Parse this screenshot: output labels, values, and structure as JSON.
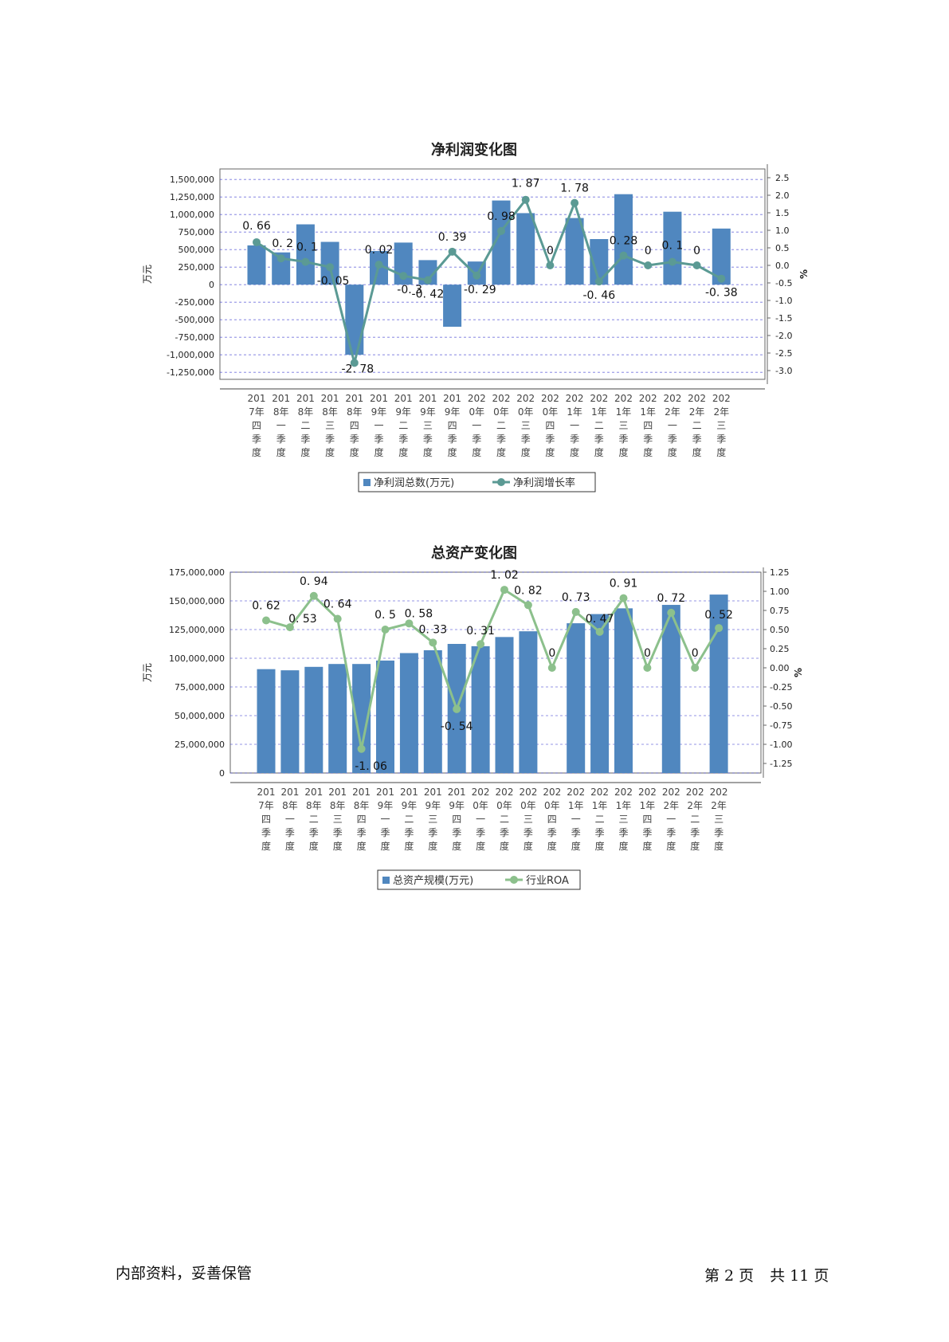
{
  "footer": {
    "confidential": "内部资料，妥善保管",
    "page_prefix": "第",
    "page_no": "2",
    "page_unit": "页",
    "total_prefix": "共",
    "total_pages": "11",
    "total_unit": "页"
  },
  "colors": {
    "bar": "#5087bf",
    "line1": "#5b9a94",
    "line2": "#8cc08c",
    "grid": "#3a3ad0"
  },
  "chart_data": [
    {
      "type": "bar+line",
      "title": "净利润变化图",
      "ylabel_left": "万元",
      "ylabel_right": "%",
      "left_ticks": [
        "1,500,000",
        "1,250,000",
        "1,000,000",
        "750,000",
        "500,000",
        "250,000",
        "0",
        "-250,000",
        "-500,000",
        "-750,000",
        "-1,000,000",
        "-1,250,000"
      ],
      "right_ticks": [
        "2.5",
        "2.0",
        "1.5",
        "1.0",
        "0.5",
        "0.0",
        "-0.5",
        "-1.0",
        "-1.5",
        "-2.0",
        "-2.5",
        "-3.0"
      ],
      "ylim_left": [
        -1350000,
        1650000
      ],
      "ylim_right": [
        -3.25,
        2.75
      ],
      "grid": true,
      "legend_position": "bottom-center",
      "categories": [
        [
          "201",
          "7年",
          "四",
          "季",
          "度"
        ],
        [
          "201",
          "8年",
          "一",
          "季",
          "度"
        ],
        [
          "201",
          "8年",
          "二",
          "季",
          "度"
        ],
        [
          "201",
          "8年",
          "三",
          "季",
          "度"
        ],
        [
          "201",
          "8年",
          "四",
          "季",
          "度"
        ],
        [
          "201",
          "9年",
          "一",
          "季",
          "度"
        ],
        [
          "201",
          "9年",
          "二",
          "季",
          "度"
        ],
        [
          "201",
          "9年",
          "三",
          "季",
          "度"
        ],
        [
          "201",
          "9年",
          "四",
          "季",
          "度"
        ],
        [
          "202",
          "0年",
          "一",
          "季",
          "度"
        ],
        [
          "202",
          "0年",
          "二",
          "季",
          "度"
        ],
        [
          "202",
          "0年",
          "三",
          "季",
          "度"
        ],
        [
          "202",
          "0年",
          "四",
          "季",
          "度"
        ],
        [
          "202",
          "1年",
          "一",
          "季",
          "度"
        ],
        [
          "202",
          "1年",
          "二",
          "季",
          "度"
        ],
        [
          "202",
          "1年",
          "三",
          "季",
          "度"
        ],
        [
          "202",
          "1年",
          "四",
          "季",
          "度"
        ],
        [
          "202",
          "2年",
          "一",
          "季",
          "度"
        ],
        [
          "202",
          "2年",
          "二",
          "季",
          "度"
        ],
        [
          "202",
          "2年",
          "三",
          "季",
          "度"
        ]
      ],
      "series": [
        {
          "name": "净利润总数(万元)",
          "kind": "bar",
          "values": [
            560000,
            460000,
            860000,
            610000,
            -1000000,
            480000,
            600000,
            350000,
            -600000,
            330000,
            1200000,
            1020000,
            null,
            950000,
            650000,
            1290000,
            null,
            1040000,
            null,
            800000
          ]
        },
        {
          "name": "净利润增长率",
          "kind": "line",
          "values": [
            0.66,
            0.2,
            0.1,
            -0.05,
            -2.78,
            0.02,
            -0.3,
            -0.42,
            0.39,
            -0.29,
            0.98,
            1.87,
            0,
            1.78,
            -0.46,
            0.28,
            0,
            0.1,
            0,
            -0.38
          ],
          "labels": [
            "0. 66",
            "0. 2",
            "0. 1",
            "-0. 05",
            "-2. 78",
            "0. 02",
            "-0. 3",
            "-0. 42",
            "0. 39",
            "-0. 29",
            "0. 98",
            "1. 87",
            "0",
            "1. 78",
            "-0. 46",
            "0. 28",
            "0",
            "0. 1",
            "0",
            "-0. 38"
          ]
        }
      ]
    },
    {
      "type": "bar+line",
      "title": "总资产变化图",
      "ylabel_left": "万元",
      "ylabel_right": "%",
      "left_ticks": [
        "175,000,000",
        "150,000,000",
        "125,000,000",
        "100,000,000",
        "75,000,000",
        "50,000,000",
        "25,000,000",
        "0"
      ],
      "right_ticks": [
        "1.25",
        "1.00",
        "0.75",
        "0.50",
        "0.25",
        "0.00",
        "-0.25",
        "-0.50",
        "-0.75",
        "-1.00",
        "-1.25"
      ],
      "ylim_left": [
        0,
        175000000
      ],
      "ylim_right": [
        -1.375,
        1.25
      ],
      "grid": true,
      "legend_position": "bottom-center",
      "categories": [
        [
          "201",
          "7年",
          "四",
          "季",
          "度"
        ],
        [
          "201",
          "8年",
          "一",
          "季",
          "度"
        ],
        [
          "201",
          "8年",
          "二",
          "季",
          "度"
        ],
        [
          "201",
          "8年",
          "三",
          "季",
          "度"
        ],
        [
          "201",
          "8年",
          "四",
          "季",
          "度"
        ],
        [
          "201",
          "9年",
          "一",
          "季",
          "度"
        ],
        [
          "201",
          "9年",
          "二",
          "季",
          "度"
        ],
        [
          "201",
          "9年",
          "三",
          "季",
          "度"
        ],
        [
          "201",
          "9年",
          "四",
          "季",
          "度"
        ],
        [
          "202",
          "0年",
          "一",
          "季",
          "度"
        ],
        [
          "202",
          "0年",
          "二",
          "季",
          "度"
        ],
        [
          "202",
          "0年",
          "三",
          "季",
          "度"
        ],
        [
          "202",
          "0年",
          "四",
          "季",
          "度"
        ],
        [
          "202",
          "1年",
          "一",
          "季",
          "度"
        ],
        [
          "202",
          "1年",
          "二",
          "季",
          "度"
        ],
        [
          "202",
          "1年",
          "三",
          "季",
          "度"
        ],
        [
          "202",
          "1年",
          "四",
          "季",
          "度"
        ],
        [
          "202",
          "2年",
          "一",
          "季",
          "度"
        ],
        [
          "202",
          "2年",
          "二",
          "季",
          "度"
        ],
        [
          "202",
          "2年",
          "三",
          "季",
          "度"
        ]
      ],
      "series": [
        {
          "name": "总资产规模(万元)",
          "kind": "bar",
          "values": [
            90500000,
            89500000,
            92500000,
            95000000,
            95000000,
            98000000,
            104500000,
            107000000,
            112500000,
            110500000,
            118500000,
            123500000,
            null,
            130500000,
            138500000,
            143500000,
            null,
            146500000,
            null,
            155500000
          ]
        },
        {
          "name": "行业ROA",
          "kind": "line",
          "values": [
            0.62,
            0.53,
            0.94,
            0.64,
            -1.06,
            0.5,
            0.58,
            0.33,
            -0.54,
            0.31,
            1.02,
            0.82,
            0,
            0.73,
            0.47,
            0.91,
            0,
            0.72,
            0,
            0.52
          ],
          "labels": [
            "0. 62",
            "0. 53",
            "0. 94",
            "0. 64",
            "-1. 06",
            "0. 5",
            "0. 58",
            "0. 33",
            "-0. 54",
            "0. 31",
            "1. 02",
            "0. 82",
            "0",
            "0. 73",
            "0. 47",
            "0. 91",
            "0",
            "0. 72",
            "0",
            "0. 52"
          ]
        }
      ]
    }
  ]
}
